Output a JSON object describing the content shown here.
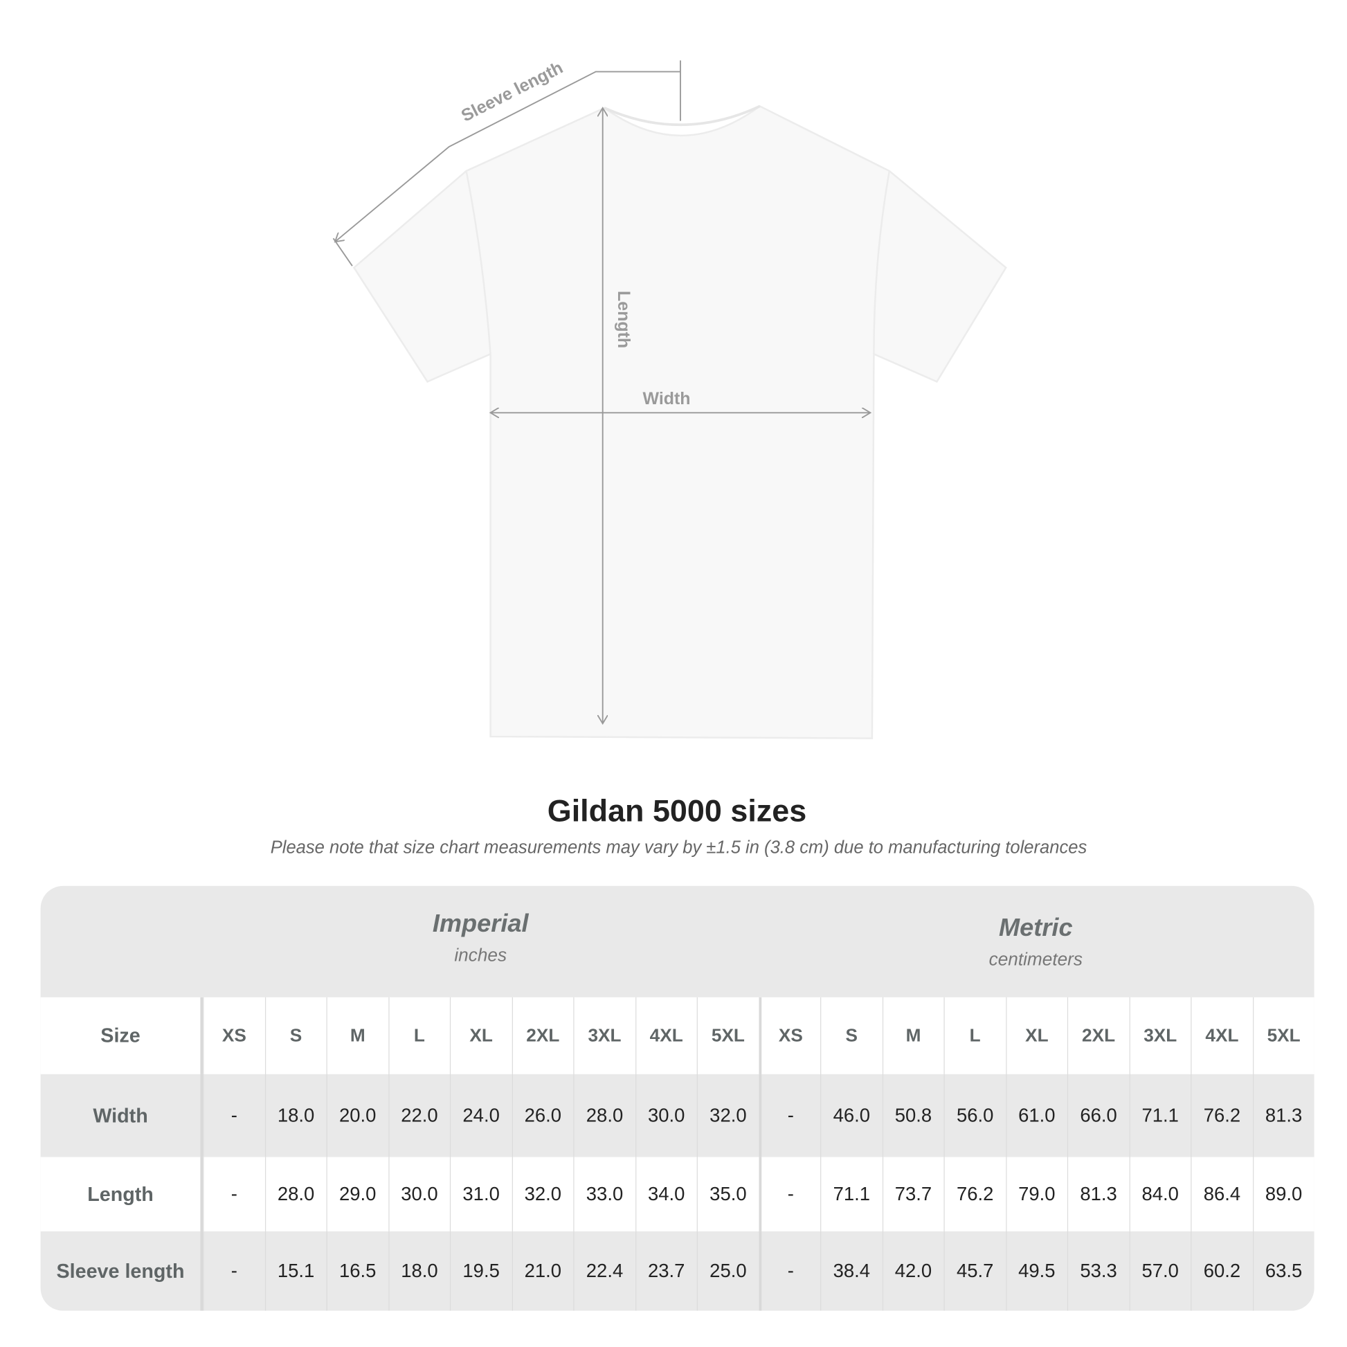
{
  "diagram": {
    "labels": {
      "sleeve": "Sleeve length",
      "length": "Length",
      "width": "Width"
    },
    "line_color": "#999999"
  },
  "title": "Gildan 5000 sizes",
  "note": "Please note that size chart measurements may vary by ±1.5 in (3.8 cm) due to manufacturing tolerances",
  "table": {
    "imperial": {
      "label": "Imperial",
      "unit": "inches"
    },
    "metric": {
      "label": "Metric",
      "unit": "centimeters"
    },
    "header_label": "Size",
    "sizes": [
      "XS",
      "S",
      "M",
      "L",
      "XL",
      "2XL",
      "3XL",
      "4XL",
      "5XL"
    ],
    "rows": [
      {
        "label": "Width",
        "imperial": [
          "-",
          "18.0",
          "20.0",
          "22.0",
          "24.0",
          "26.0",
          "28.0",
          "30.0",
          "32.0"
        ],
        "metric": [
          "-",
          "46.0",
          "50.8",
          "56.0",
          "61.0",
          "66.0",
          "71.1",
          "76.2",
          "81.3"
        ]
      },
      {
        "label": "Length",
        "imperial": [
          "-",
          "28.0",
          "29.0",
          "30.0",
          "31.0",
          "32.0",
          "33.0",
          "34.0",
          "35.0"
        ],
        "metric": [
          "-",
          "71.1",
          "73.7",
          "76.2",
          "79.0",
          "81.3",
          "84.0",
          "86.4",
          "89.0"
        ]
      },
      {
        "label": "Sleeve length",
        "imperial": [
          "-",
          "15.1",
          "16.5",
          "18.0",
          "19.5",
          "21.0",
          "22.4",
          "23.7",
          "25.0"
        ],
        "metric": [
          "-",
          "38.4",
          "42.0",
          "45.7",
          "49.5",
          "53.3",
          "57.0",
          "60.2",
          "63.5"
        ]
      }
    ]
  }
}
